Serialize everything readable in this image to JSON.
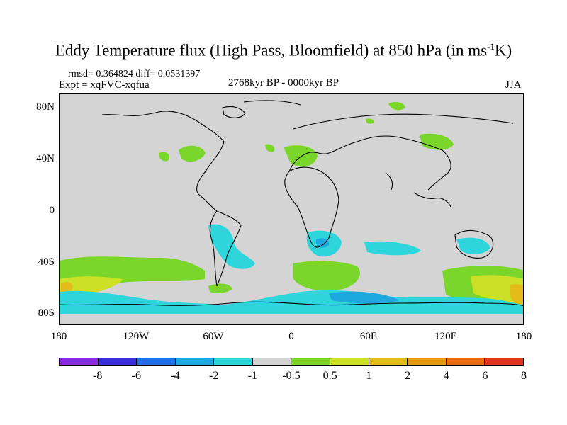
{
  "title": {
    "main": "Eddy Temperature flux (High Pass, Bloomfield) at 850 hPa (in ms",
    "sup": "-1",
    "end": "K)"
  },
  "stats": "rmsd= 0.364824 diff= 0.0531397",
  "experiment": "Expt = xqFVC-xqfua",
  "period": "2768kyr BP - 0000kyr BP",
  "season": "JJA",
  "axes": {
    "y_ticks": [
      "80N",
      "40N",
      "0",
      "40S",
      "80S"
    ],
    "x_ticks": [
      "180",
      "120W",
      "60W",
      "0",
      "60E",
      "120E",
      "180"
    ]
  },
  "colorbar": {
    "colors": [
      "#8a2be2",
      "#3a2fd8",
      "#1f6fe6",
      "#1ea8e0",
      "#2ed6dc",
      "#d4d4d4",
      "#7ad62a",
      "#cbe026",
      "#e5bb1c",
      "#e69a14",
      "#e66a10",
      "#e0361a"
    ],
    "labels": [
      "-8",
      "-6",
      "-4",
      "-2",
      "-1",
      "-0.5",
      "0.5",
      "1",
      "2",
      "4",
      "6",
      "8"
    ]
  },
  "legend_colors": {
    "neutral": "#d4d4d4",
    "green": "#7ad62a",
    "yellow": "#cbe026",
    "orange": "#e5bb1c",
    "cyan": "#2ed6dc",
    "lightblue": "#1ea8e0"
  }
}
